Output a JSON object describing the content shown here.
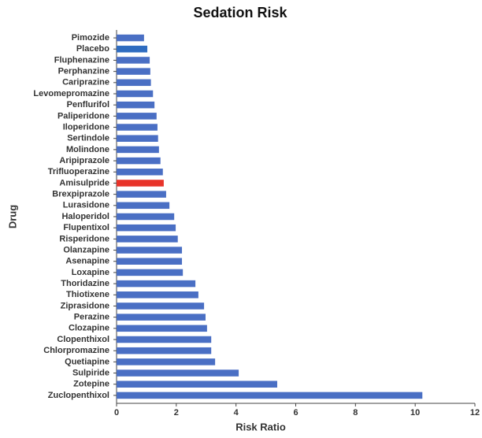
{
  "chart_data": {
    "type": "barh",
    "title": "Sedation Risk",
    "x_label": "Risk Ratio",
    "y_label": "Drug",
    "categories": [
      "Pimozide",
      "Placebo",
      "Fluphenazine",
      "Perphanzine",
      "Cariprazine",
      "Levomepromazine",
      "Penflurifol",
      "Paliperidone",
      "Iloperidone",
      "Sertindole",
      "Molindone",
      "Aripiprazole",
      "Trifluoperazine",
      "Amisulpride",
      "Brexpiprazole",
      "Lurasidone",
      "Haloperidol",
      "Flupentixol",
      "Risperidone",
      "Olanzapine",
      "Asenapine",
      "Loxapine",
      "Thoridazine",
      "Thiotixene",
      "Ziprasidone",
      "Perazine",
      "Clozapine",
      "Clopenthixol",
      "Chlorpromazine",
      "Quetiapine",
      "Sulpiride",
      "Zotepine",
      "Zuclopenthixol"
    ],
    "values": [
      0.92,
      1.03,
      1.11,
      1.13,
      1.15,
      1.22,
      1.27,
      1.34,
      1.37,
      1.39,
      1.42,
      1.47,
      1.55,
      1.58,
      1.66,
      1.77,
      1.93,
      1.98,
      2.05,
      2.19,
      2.19,
      2.22,
      2.64,
      2.74,
      2.93,
      2.98,
      3.03,
      3.17,
      3.17,
      3.3,
      4.09,
      5.38,
      10.24
    ],
    "colors": [
      "#4a6fc4",
      "#2f6cc0",
      "#4a6fc4",
      "#4a6fc4",
      "#4a6fc4",
      "#4a6fc4",
      "#4a6fc4",
      "#4a6fc4",
      "#4a6fc4",
      "#4a6fc4",
      "#4a6fc4",
      "#4a6fc4",
      "#4a6fc4",
      "#e8342a",
      "#4a6fc4",
      "#4a6fc4",
      "#4a6fc4",
      "#4a6fc4",
      "#4a6fc4",
      "#4a6fc4",
      "#4a6fc4",
      "#4a6fc4",
      "#4a6fc4",
      "#4a6fc4",
      "#4a6fc4",
      "#4a6fc4",
      "#4a6fc4",
      "#4a6fc4",
      "#4a6fc4",
      "#4a6fc4",
      "#4a6fc4",
      "#4a6fc4",
      "#4a6fc4"
    ],
    "xlim": [
      0,
      12
    ],
    "xticks": [
      0,
      2,
      4,
      6,
      8,
      10,
      12
    ]
  }
}
